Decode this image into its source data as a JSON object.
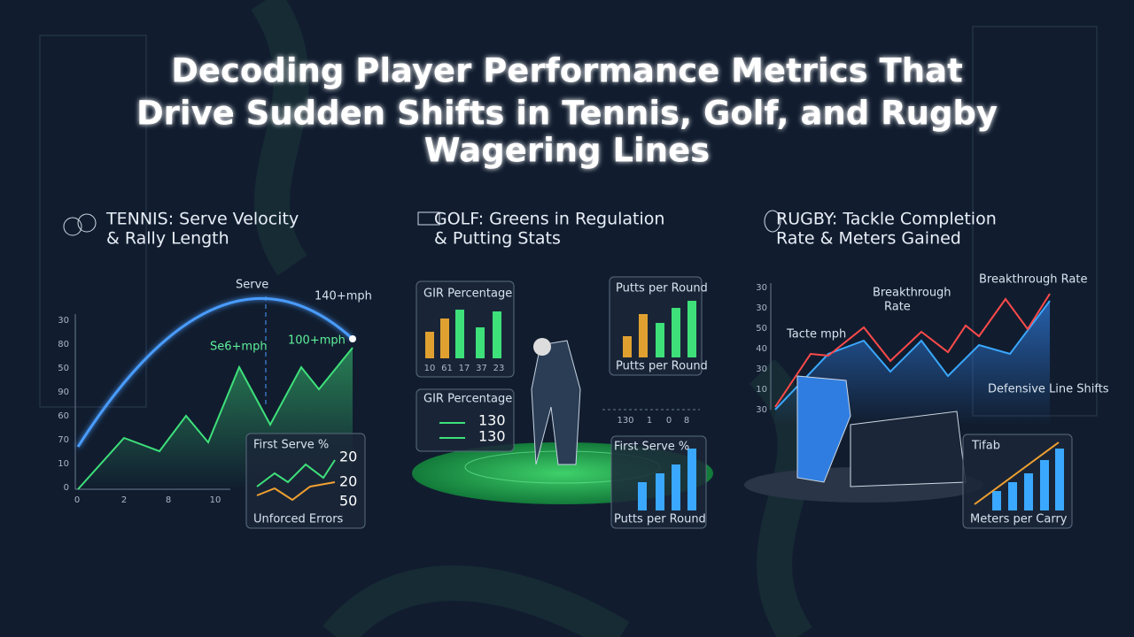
{
  "header": {
    "title_lines": [
      "Decoding Player Performance Metrics That",
      "Drive Sudden Shifts in Tennis, Golf, and Rugby",
      "Wagering Lines"
    ]
  },
  "tennis": {
    "heading": [
      "TENNIS: Serve Velocity",
      "& Rally Length"
    ],
    "serve": "Serve",
    "top_speed": "140+mph",
    "speed_a": "Se6+mph",
    "speed_b": "100+mph",
    "y_labels": [
      "30",
      "80",
      "50",
      "90",
      "60",
      "70",
      "10",
      "0"
    ],
    "x_labels": [
      "0",
      "2",
      "8",
      "10"
    ],
    "inset": {
      "title": "First Serve %",
      "values": [
        "20",
        "20",
        "50"
      ],
      "footer": "Unforced Errors"
    }
  },
  "golf": {
    "heading": [
      "GOLF: Greens in Regulation",
      "& Putting Stats"
    ],
    "gir_panel": {
      "title": "GIR Percentage",
      "x_labels": [
        "10",
        "61",
        "17",
        "37",
        "23"
      ]
    },
    "putts_panel": {
      "title": "Putts per Round",
      "footer": "Putts per Round"
    },
    "gir_panel_2": {
      "title": "GIR Percentage",
      "values": [
        "130",
        "130"
      ]
    },
    "dot_labels": [
      "130",
      "1",
      "0",
      "8"
    ],
    "serve_panel": {
      "title": "First Serve %",
      "footer": "Putts per Round"
    }
  },
  "rugby": {
    "heading": [
      "RUGBY: Tackle Completion",
      "Rate & Meters Gained"
    ],
    "breakthrough": [
      "Breakthrough",
      "Rate"
    ],
    "breakthrough_rate": "Breakthrough Rate",
    "tackle": "Tacte mph",
    "defensive": "Defensive Line Shifts",
    "y_labels": [
      "30",
      "30",
      "50",
      "40",
      "30",
      "10",
      "30"
    ],
    "inset": {
      "title": "Tifab",
      "footer": "Meters per Carry"
    }
  }
}
